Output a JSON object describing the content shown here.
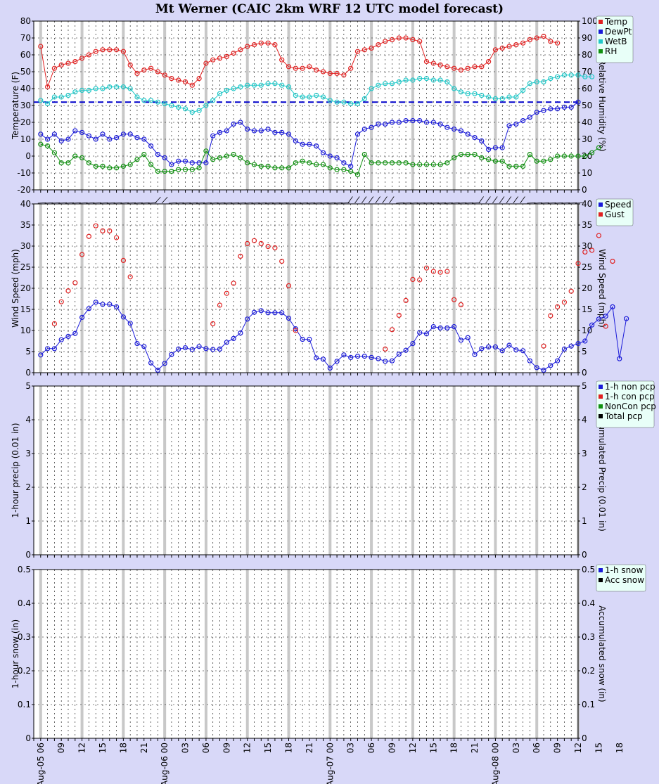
{
  "title": "Mt Werner (CAIC 2km WRF 12 UTC model forecast)",
  "colors": {
    "temp": "#e02020",
    "dewpt": "#1a1ad8",
    "wetb": "#20c8c8",
    "rh": "#109010",
    "speed": "#1a1ad8",
    "gust": "#e02020",
    "nonpcp": "#1a1ad8",
    "conpcp": "#e02020",
    "noncon": "#109010",
    "total": "#000000",
    "ref": "#0000cc"
  },
  "x_axis": {
    "labels": [
      "Aug-05 06",
      "09",
      "12",
      "15",
      "18",
      "21",
      "Aug-06 00",
      "03",
      "06",
      "09",
      "12",
      "15",
      "18",
      "21",
      "Aug-07 00",
      "03",
      "06",
      "09",
      "12",
      "15",
      "18",
      "21",
      "Aug-08 00",
      "03",
      "06",
      "09",
      "12",
      "15",
      "18"
    ]
  },
  "chart_data": [
    {
      "type": "line",
      "panel": "temperature",
      "ylabel": "Temperature (F)",
      "y2label": "Relative Humidity  (%)",
      "ylim": [
        -20,
        80
      ],
      "y2lim": [
        0,
        100
      ],
      "yticks": [
        -20,
        -10,
        0,
        10,
        20,
        30,
        40,
        50,
        60,
        70,
        80
      ],
      "y2ticks": [
        0,
        10,
        20,
        30,
        40,
        50,
        60,
        70,
        80,
        90,
        100
      ],
      "reference_line": 32,
      "x_start_hour": 6,
      "series": [
        {
          "name": "Temp",
          "color_key": "temp",
          "x_start_hour": 6,
          "values": [
            65,
            41,
            52,
            54,
            55,
            56,
            58,
            60,
            62,
            63,
            63,
            63,
            62,
            54,
            49,
            51,
            52,
            50,
            48,
            46,
            45,
            44,
            42,
            46,
            55,
            57,
            58,
            59,
            61,
            63,
            65,
            66,
            67,
            67,
            66,
            57,
            53,
            52,
            52,
            53,
            51,
            50,
            49,
            49,
            48,
            52,
            62,
            63,
            64,
            66,
            68,
            69,
            70,
            70,
            69,
            68,
            56,
            55,
            54,
            53,
            52,
            51,
            52,
            53,
            53,
            56,
            63,
            64,
            65,
            66,
            67,
            69,
            70,
            71,
            68,
            67
          ]
        },
        {
          "name": "DewPt",
          "color_key": "dewpt",
          "x_start_hour": 6,
          "values": [
            13,
            10,
            13,
            9,
            10,
            15,
            14,
            12,
            10,
            13,
            10,
            11,
            13,
            13,
            11,
            10,
            6,
            1,
            -1,
            -5,
            -3,
            -3,
            -4,
            -4,
            -4,
            12,
            14,
            15,
            19,
            20,
            16,
            15,
            15,
            16,
            14,
            14,
            13,
            9,
            7,
            7,
            6,
            2,
            0,
            -1,
            -4,
            -6,
            13,
            16,
            17,
            19,
            19,
            20,
            20,
            21,
            21,
            21,
            20,
            20,
            19,
            17,
            16,
            15,
            13,
            11,
            9,
            4,
            5,
            5,
            18,
            19,
            21,
            23,
            26,
            27,
            28,
            28,
            29,
            29,
            32
          ]
        },
        {
          "name": "WetB",
          "color_key": "wetb",
          "x_start_hour": 6,
          "values": [
            33,
            31,
            35,
            35,
            36,
            38,
            39,
            39,
            40,
            40,
            41,
            41,
            41,
            40,
            35,
            33,
            33,
            32,
            31,
            30,
            29,
            28,
            26,
            27,
            30,
            33,
            37,
            39,
            40,
            41,
            42,
            42,
            42,
            43,
            43,
            42,
            41,
            36,
            35,
            35,
            36,
            35,
            33,
            32,
            32,
            31,
            31,
            34,
            40,
            42,
            43,
            43,
            44,
            45,
            45,
            46,
            46,
            45,
            45,
            44,
            40,
            38,
            37,
            37,
            36,
            35,
            34,
            34,
            35,
            35,
            39,
            43,
            44,
            44,
            46,
            47,
            48,
            48,
            48,
            47,
            47
          ]
        },
        {
          "name": "RH",
          "color_key": "rh",
          "x_start_hour": 6,
          "values": [
            27,
            26,
            22,
            16,
            16,
            20,
            19,
            16,
            14,
            14,
            13,
            13,
            14,
            15,
            18,
            21,
            15,
            11,
            11,
            11,
            12,
            12,
            12,
            13,
            23,
            18,
            19,
            20,
            21,
            19,
            16,
            15,
            14,
            14,
            13,
            13,
            13,
            16,
            17,
            16,
            15,
            15,
            13,
            12,
            12,
            11,
            9,
            21,
            16,
            16,
            16,
            16,
            16,
            16,
            15,
            15,
            15,
            15,
            15,
            16,
            19,
            21,
            21,
            21,
            19,
            18,
            17,
            17,
            14,
            14,
            14,
            21,
            17,
            17,
            18,
            20,
            20,
            20,
            20,
            20,
            22,
            25
          ]
        }
      ]
    },
    {
      "type": "scatter",
      "panel": "wind",
      "ylabel": "Wind Speed (mph)",
      "y2label": "Wind Speed (mph)",
      "ylim": [
        0,
        40
      ],
      "yticks": [
        0,
        5,
        10,
        15,
        20,
        25,
        30,
        35,
        40
      ],
      "series": [
        {
          "name": "Speed",
          "color_key": "speed",
          "x_start_hour": 6,
          "values": [
            4.2,
            5.7,
            5.7,
            7.8,
            8.6,
            9.3,
            13.1,
            15.2,
            16.7,
            16.2,
            16.2,
            15.6,
            13.2,
            11.7,
            6.9,
            6.2,
            2.3,
            0.6,
            2.2,
            4.3,
            5.6,
            5.9,
            5.5,
            6.2,
            5.7,
            5.5,
            5.6,
            7.2,
            8.1,
            9.4,
            12.7,
            14.3,
            14.7,
            14.2,
            14.2,
            14.2,
            12.9,
            10.4,
            7.9,
            7.9,
            3.5,
            3.2,
            1.1,
            2.7,
            4.2,
            3.6,
            3.9,
            3.9,
            3.6,
            3.3,
            2.7,
            2.8,
            4.4,
            5.3,
            6.9,
            9.5,
            9.2,
            10.9,
            10.6,
            10.6,
            10.9,
            7.7,
            8.3,
            4.3,
            5.7,
            6.1,
            6.1,
            5.2,
            6.5,
            5.4,
            5.2,
            2.8,
            1.2,
            0.6,
            1.7,
            2.8,
            5.6,
            6.3,
            6.9,
            7.5,
            11.3,
            12.7,
            13.4,
            15.6,
            3.3,
            12.8
          ]
        },
        {
          "name": "Gust",
          "color_key": "gust",
          "x_start_hour": 6,
          "values": [
            null,
            null,
            11.6,
            16.8,
            19.4,
            21.3,
            28.0,
            32.3,
            34.8,
            33.6,
            33.6,
            32.0,
            26.6,
            22.7,
            null,
            null,
            null,
            null,
            null,
            null,
            null,
            null,
            null,
            null,
            null,
            11.6,
            16.0,
            18.8,
            21.2,
            27.6,
            30.6,
            31.3,
            30.6,
            29.9,
            29.6,
            26.4,
            20.6,
            10.0,
            null,
            null,
            null,
            null,
            null,
            null,
            null,
            null,
            null,
            null,
            null,
            null,
            5.6,
            10.2,
            13.6,
            17.1,
            22.1,
            22.0,
            24.8,
            24.0,
            23.8,
            24.0,
            17.3,
            16.1,
            null,
            null,
            null,
            null,
            null,
            null,
            null,
            null,
            null,
            null,
            null,
            6.3,
            13.5,
            15.6,
            16.7,
            19.3,
            25.9,
            28.6,
            29.0,
            32.5,
            11.0,
            26.4
          ]
        }
      ]
    },
    {
      "type": "line",
      "panel": "precip",
      "ylabel": "1-hour precip (0.01 in)",
      "y2label": "Accumulated Precip (0.01 in)",
      "ylim": [
        0,
        5
      ],
      "yticks": [
        0,
        1,
        2,
        3,
        4,
        5
      ],
      "series": [
        {
          "name": "1-h non pcp",
          "color_key": "nonpcp"
        },
        {
          "name": "1-h con pcp",
          "color_key": "conpcp"
        },
        {
          "name": "NonCon pcp",
          "color_key": "noncon"
        },
        {
          "name": "Total pcp",
          "color_key": "total"
        }
      ]
    },
    {
      "type": "line",
      "panel": "snow",
      "ylabel": "1-hour snow (in)",
      "y2label": "Accumulated snow  (in)",
      "ylim": [
        0,
        0.5
      ],
      "yticks": [
        0,
        0.1,
        0.2,
        0.3,
        0.4,
        0.5
      ],
      "series": [
        {
          "name": "1-h snow",
          "color_key": "nonpcp"
        },
        {
          "name": "Acc snow",
          "color_key": "total"
        }
      ]
    }
  ],
  "legends": {
    "temperature": [
      "Temp",
      "DewPt",
      "WetB",
      "RH"
    ],
    "wind": [
      "Speed",
      "Gust"
    ],
    "precip": [
      "1-h non pcp",
      "1-h con pcp",
      "NonCon pcp",
      "Total pcp"
    ],
    "snow": [
      "1-h snow",
      "Acc snow"
    ]
  }
}
